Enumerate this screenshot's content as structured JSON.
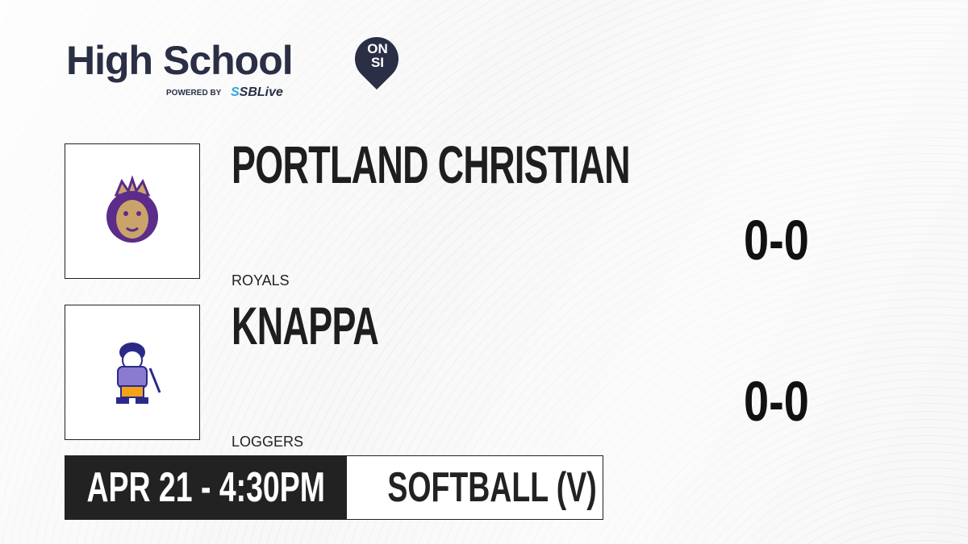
{
  "brand": {
    "title": "High School",
    "badge_top": "ON",
    "badge_bottom": "SI",
    "powered_by": "POWERED BY",
    "partner_prefix": "S",
    "partner": "SBLive"
  },
  "teams": [
    {
      "name": "PORTLAND CHRISTIAN",
      "mascot": "ROYALS",
      "score": "0-0",
      "logo_icon": "lion-crown-logo"
    },
    {
      "name": "KNAPPA",
      "mascot": "LOGGERS",
      "score": "0-0",
      "logo_icon": "logger-logo"
    }
  ],
  "game": {
    "datetime": "APR 21 - 4:30PM",
    "sport": "SOFTBALL (V)"
  },
  "colors": {
    "brand_navy": "#2b2f45",
    "accent_blue": "#29a8e0",
    "royals_purple": "#5b2c8a",
    "royals_gold": "#c9a36a",
    "loggers_gold": "#f2a31b",
    "loggers_blue": "#2a2a8a"
  }
}
